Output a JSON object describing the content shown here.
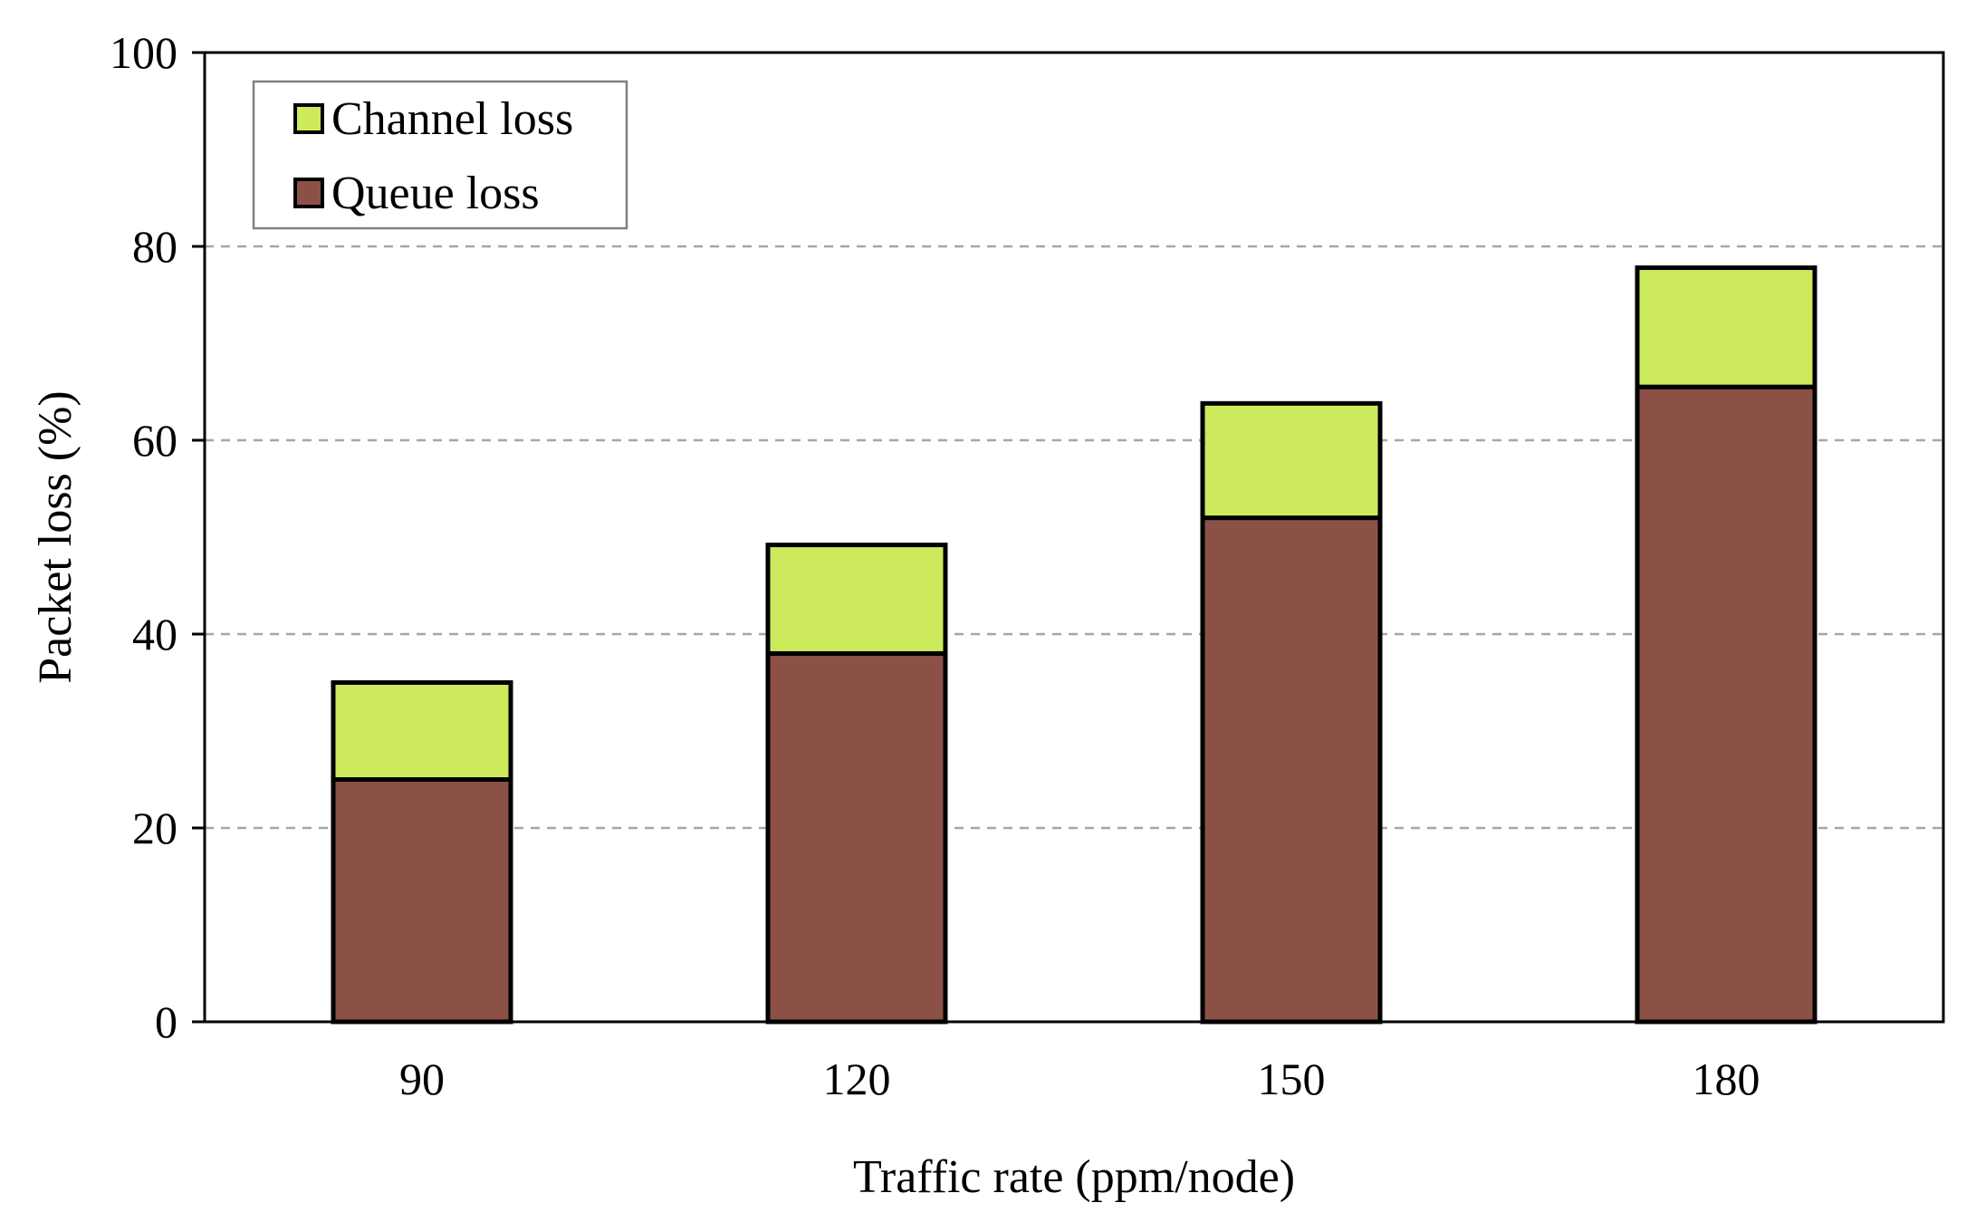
{
  "chart_data": {
    "type": "bar",
    "stacked": true,
    "title": "",
    "xlabel": "Traffic rate (ppm/node)",
    "ylabel": "Packet loss (%)",
    "categories": [
      "90",
      "120",
      "150",
      "180"
    ],
    "series": [
      {
        "name": "Queue loss",
        "color": "#8b5147",
        "values": [
          25,
          38,
          52,
          65.5
        ]
      },
      {
        "name": "Channel loss",
        "color": "#cdea5c",
        "values": [
          10,
          11.2,
          11.8,
          12.3
        ]
      }
    ],
    "ylim": [
      0,
      100
    ],
    "yticks": [
      "0",
      "20",
      "40",
      "60",
      "80",
      "100"
    ],
    "grid": true,
    "legend": {
      "position": "top-left",
      "entries": [
        "Channel loss",
        "Queue loss"
      ]
    }
  }
}
